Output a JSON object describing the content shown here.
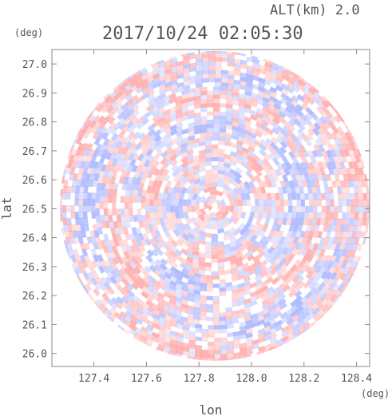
{
  "header": {
    "altitude_label": "ALT(km) 2.0",
    "timestamp": "2017/10/24 02:05:30"
  },
  "chart_data": {
    "type": "heatmap",
    "title": "2017/10/24 02:05:30",
    "subtitle": "ALT(km) 2.0",
    "xlabel": "lon",
    "ylabel": "lat",
    "x_unit": "(deg)",
    "y_unit": "(deg)",
    "xlim": [
      127.24,
      128.45
    ],
    "ylim": [
      25.955,
      27.05
    ],
    "x_ticks": [
      127.4,
      127.6,
      127.8,
      128.0,
      128.2,
      128.4
    ],
    "x_tick_labels": [
      "127.4",
      "127.6",
      "127.8",
      "128.0",
      "128.2",
      "128.4"
    ],
    "y_ticks": [
      26.0,
      26.1,
      26.2,
      26.3,
      26.4,
      26.5,
      26.6,
      26.7,
      26.8,
      26.9,
      27.0
    ],
    "y_tick_labels": [
      "26.0",
      "26.1",
      "26.2",
      "26.3",
      "26.4",
      "26.5",
      "26.6",
      "26.7",
      "26.8",
      "26.9",
      "27.0"
    ],
    "radar_center": {
      "lon": 127.86,
      "lat": 26.51
    },
    "radar_radius_deg_lat": 0.535,
    "colors": {
      "positive": "#ff9a9a",
      "negative": "#9aa8ff",
      "frame": "#888888"
    },
    "grid": false,
    "legend": "none"
  }
}
